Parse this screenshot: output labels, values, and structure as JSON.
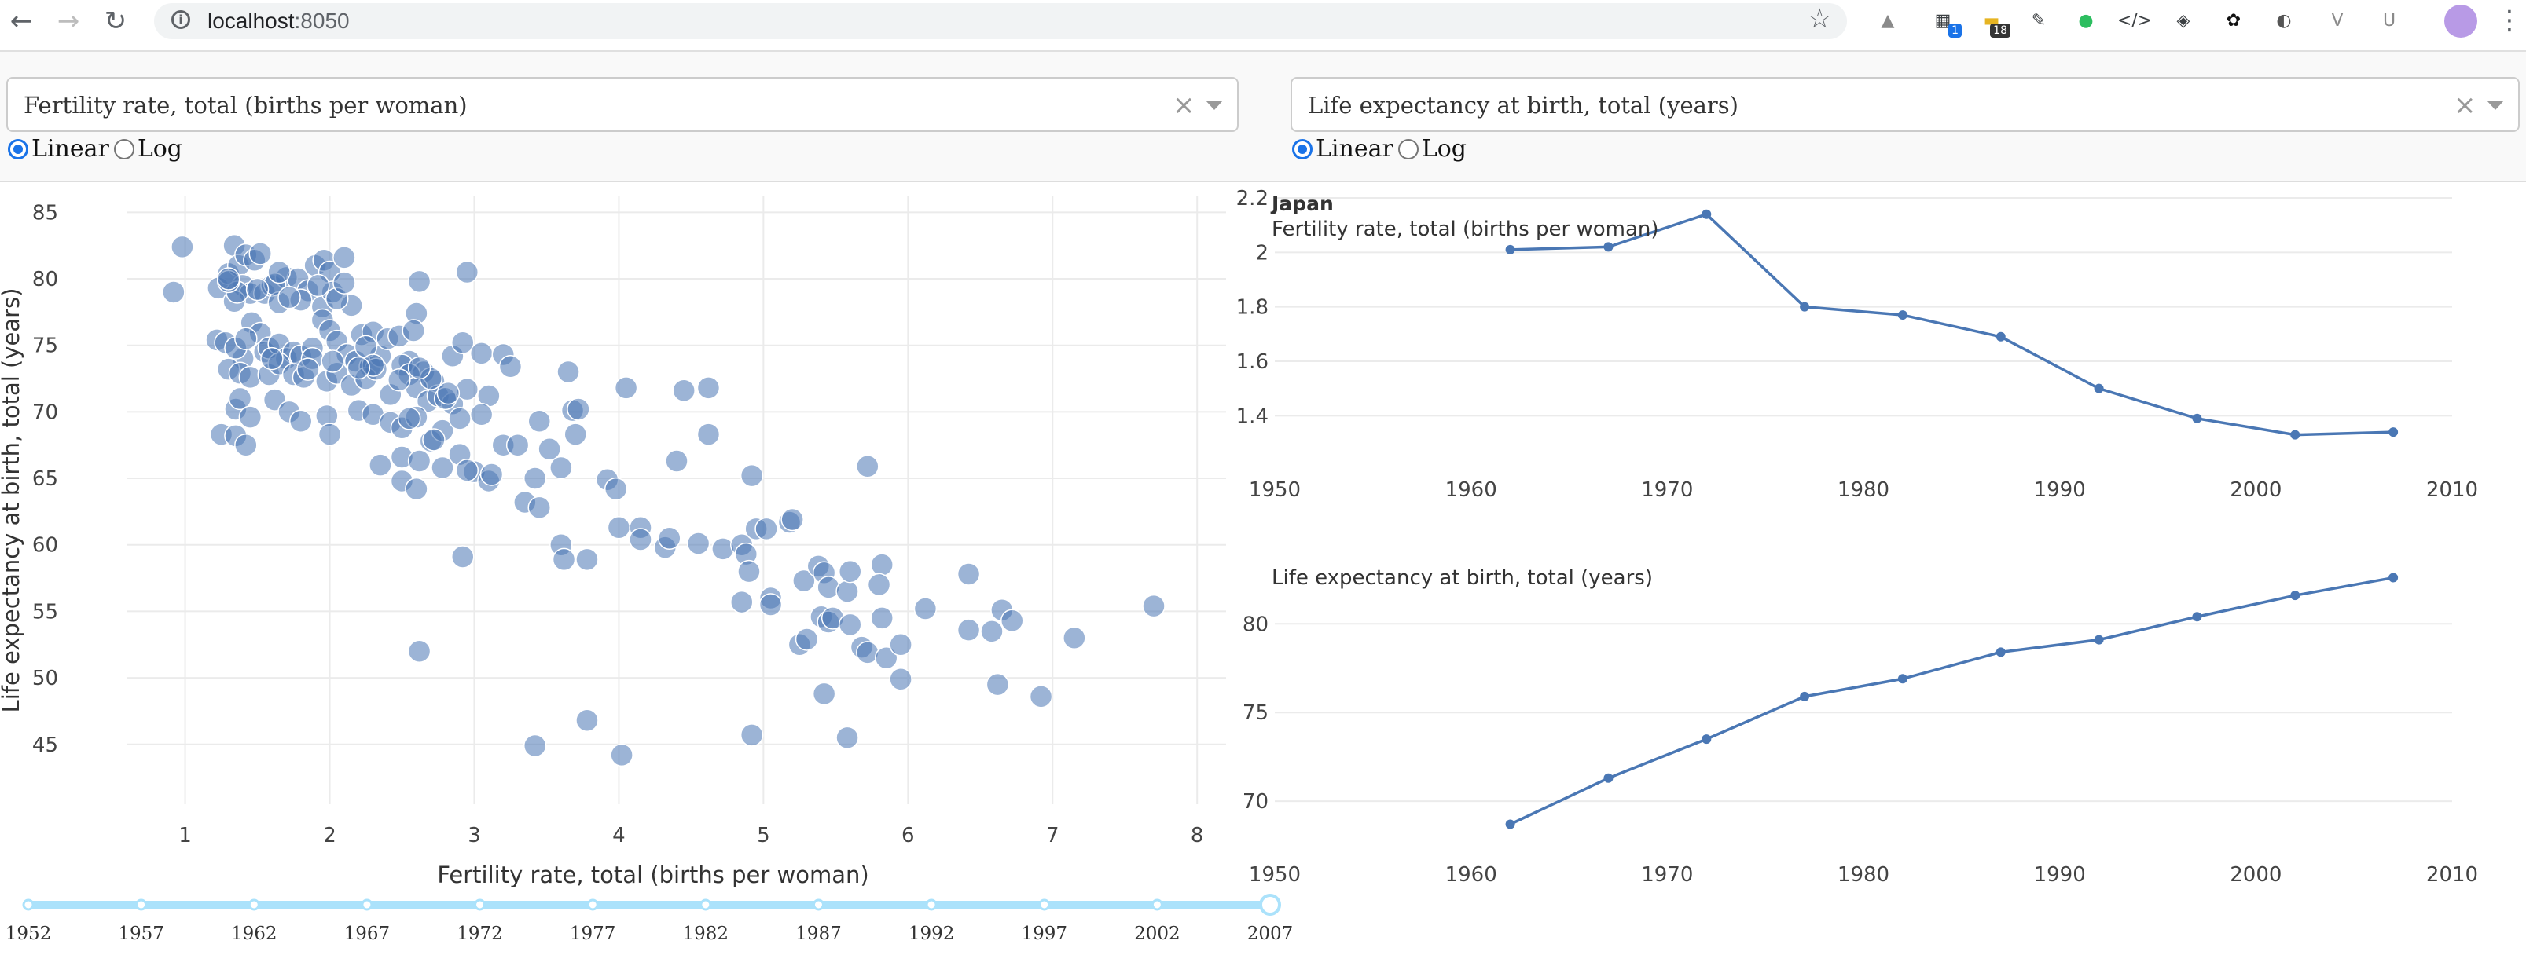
{
  "browser": {
    "url_host": "localhost",
    "url_port": ":8050",
    "extensions": [
      {
        "name": "drive-icon",
        "color": "#8a8a8a",
        "glyph": "▲",
        "badge": ""
      },
      {
        "name": "clapper-icon",
        "color": "#3c4043",
        "glyph": "▦",
        "badge": "1",
        "badge_dark": false
      },
      {
        "name": "sticky-icon",
        "color": "#e6b422",
        "glyph": "▬",
        "badge": "18",
        "badge_dark": true
      },
      {
        "name": "pen-icon",
        "color": "#3c4043",
        "glyph": "✎",
        "badge": ""
      },
      {
        "name": "evernote-icon",
        "color": "#2dbe60",
        "glyph": "●",
        "badge": ""
      },
      {
        "name": "code-icon",
        "color": "#3c4043",
        "glyph": "</>",
        "badge": ""
      },
      {
        "name": "bulb-icon",
        "color": "#3c4043",
        "glyph": "◈",
        "badge": ""
      },
      {
        "name": "github-icon",
        "color": "#111111",
        "glyph": "✿",
        "badge": ""
      },
      {
        "name": "circle-icon",
        "color": "#555555",
        "glyph": "◐",
        "badge": ""
      },
      {
        "name": "vue-icon",
        "color": "#8a8a8a",
        "glyph": "V",
        "badge": ""
      },
      {
        "name": "u-icon",
        "color": "#8a8a8a",
        "glyph": "U",
        "badge": ""
      }
    ]
  },
  "controls": {
    "xaxis_dropdown": {
      "value": "Fertility rate, total (births per woman)"
    },
    "yaxis_dropdown": {
      "value": "Life expectancy at birth, total (years)"
    },
    "xaxis_type": {
      "options": [
        "Linear",
        "Log"
      ],
      "selected": "Linear"
    },
    "yaxis_type": {
      "options": [
        "Linear",
        "Log"
      ],
      "selected": "Linear"
    }
  },
  "year_slider": {
    "marks": [
      "1952",
      "1957",
      "1962",
      "1967",
      "1972",
      "1977",
      "1982",
      "1987",
      "1992",
      "1997",
      "2002",
      "2007"
    ],
    "selected": "2007"
  },
  "chart_data": [
    {
      "type": "scatter",
      "xlabel": "Fertility rate, total (births per woman)",
      "ylabel": "Life expectancy at birth, total (years)",
      "xlim": [
        0.6,
        8.2
      ],
      "ylim": [
        40.5,
        86.2
      ],
      "xticks": [
        1,
        2,
        3,
        4,
        5,
        6,
        7,
        8
      ],
      "yticks": [
        45,
        50,
        55,
        60,
        65,
        70,
        75,
        80,
        85
      ],
      "color": "#4a77b4",
      "points": [
        [
          0.92,
          79.0
        ],
        [
          0.98,
          82.4
        ],
        [
          1.23,
          79.3
        ],
        [
          1.3,
          80.4
        ],
        [
          1.34,
          82.5
        ],
        [
          1.37,
          81.0
        ],
        [
          1.42,
          81.8
        ],
        [
          1.48,
          81.4
        ],
        [
          1.52,
          81.9
        ],
        [
          1.4,
          79.5
        ],
        [
          1.45,
          78.9
        ],
        [
          1.34,
          78.3
        ],
        [
          1.36,
          79.0
        ],
        [
          1.3,
          79.8
        ],
        [
          1.55,
          78.9
        ],
        [
          1.6,
          79.5
        ],
        [
          1.65,
          78.2
        ],
        [
          1.7,
          80.1
        ],
        [
          1.78,
          80.0
        ],
        [
          1.85,
          79.1
        ],
        [
          1.9,
          81.0
        ],
        [
          1.96,
          81.4
        ],
        [
          2.0,
          80.5
        ],
        [
          2.1,
          81.6
        ],
        [
          1.8,
          78.4
        ],
        [
          1.95,
          77.9
        ],
        [
          2.02,
          79.0
        ],
        [
          2.15,
          78.0
        ],
        [
          1.62,
          79.6
        ],
        [
          1.72,
          78.6
        ],
        [
          1.22,
          75.4
        ],
        [
          1.28,
          75.2
        ],
        [
          1.4,
          74.0
        ],
        [
          1.46,
          76.7
        ],
        [
          1.52,
          75.9
        ],
        [
          1.55,
          74.5
        ],
        [
          1.58,
          74.8
        ],
        [
          1.65,
          75.1
        ],
        [
          1.7,
          74.0
        ],
        [
          1.75,
          74.5
        ],
        [
          1.8,
          74.2
        ],
        [
          1.88,
          74.8
        ],
        [
          1.95,
          76.9
        ],
        [
          2.0,
          76.1
        ],
        [
          2.05,
          75.3
        ],
        [
          2.12,
          74.3
        ],
        [
          2.18,
          73.8
        ],
        [
          2.22,
          75.8
        ],
        [
          2.3,
          76.0
        ],
        [
          2.28,
          73.4
        ],
        [
          2.35,
          74.2
        ],
        [
          2.4,
          75.5
        ],
        [
          2.48,
          75.7
        ],
        [
          2.55,
          73.8
        ],
        [
          2.6,
          77.4
        ],
        [
          2.58,
          76.1
        ],
        [
          2.65,
          73.0
        ],
        [
          2.72,
          72.3
        ],
        [
          2.85,
          74.2
        ],
        [
          2.92,
          75.2
        ],
        [
          3.05,
          74.4
        ],
        [
          3.2,
          74.3
        ],
        [
          1.3,
          73.2
        ],
        [
          1.38,
          72.9
        ],
        [
          1.45,
          72.6
        ],
        [
          1.58,
          72.8
        ],
        [
          1.65,
          73.6
        ],
        [
          1.75,
          72.8
        ],
        [
          1.82,
          72.6
        ],
        [
          1.88,
          74.0
        ],
        [
          1.98,
          72.3
        ],
        [
          2.05,
          72.9
        ],
        [
          2.15,
          72.0
        ],
        [
          2.25,
          72.5
        ],
        [
          2.32,
          73.2
        ],
        [
          2.42,
          71.3
        ],
        [
          2.5,
          73.5
        ],
        [
          2.55,
          72.8
        ],
        [
          2.6,
          71.8
        ],
        [
          2.68,
          70.8
        ],
        [
          2.75,
          71.2
        ],
        [
          2.85,
          70.6
        ],
        [
          2.95,
          71.7
        ],
        [
          3.1,
          71.2
        ],
        [
          3.25,
          73.4
        ],
        [
          1.35,
          70.2
        ],
        [
          1.38,
          71.0
        ],
        [
          1.45,
          69.6
        ],
        [
          1.62,
          70.9
        ],
        [
          1.72,
          70.0
        ],
        [
          1.8,
          69.3
        ],
        [
          1.98,
          69.7
        ],
        [
          2.2,
          70.1
        ],
        [
          2.3,
          69.8
        ],
        [
          2.42,
          69.2
        ],
        [
          2.5,
          68.8
        ],
        [
          2.6,
          69.6
        ],
        [
          2.7,
          67.8
        ],
        [
          2.78,
          68.6
        ],
        [
          2.9,
          69.5
        ],
        [
          3.05,
          69.8
        ],
        [
          3.2,
          67.5
        ],
        [
          1.25,
          68.3
        ],
        [
          1.35,
          68.2
        ],
        [
          1.42,
          67.5
        ],
        [
          2.0,
          68.3
        ],
        [
          2.35,
          66.0
        ],
        [
          2.5,
          66.6
        ],
        [
          2.62,
          66.3
        ],
        [
          2.78,
          65.8
        ],
        [
          2.9,
          66.8
        ],
        [
          3.0,
          65.5
        ],
        [
          3.1,
          64.8
        ],
        [
          3.12,
          65.3
        ],
        [
          2.5,
          64.8
        ],
        [
          2.6,
          64.2
        ],
        [
          3.35,
          63.2
        ],
        [
          3.45,
          62.8
        ],
        [
          3.42,
          65.0
        ],
        [
          3.3,
          67.5
        ],
        [
          3.45,
          69.3
        ],
        [
          3.52,
          67.2
        ],
        [
          3.6,
          65.8
        ],
        [
          3.65,
          73.0
        ],
        [
          3.68,
          70.1
        ],
        [
          3.7,
          68.3
        ],
        [
          3.72,
          70.2
        ],
        [
          4.05,
          71.8
        ],
        [
          4.45,
          71.6
        ],
        [
          4.62,
          71.8
        ],
        [
          4.62,
          68.3
        ],
        [
          4.4,
          66.3
        ],
        [
          3.92,
          64.9
        ],
        [
          3.98,
          64.2
        ],
        [
          4.0,
          61.3
        ],
        [
          4.15,
          61.3
        ],
        [
          4.15,
          60.4
        ],
        [
          4.32,
          59.8
        ],
        [
          4.35,
          60.5
        ],
        [
          4.55,
          60.1
        ],
        [
          4.72,
          59.7
        ],
        [
          4.85,
          60.0
        ],
        [
          4.88,
          59.3
        ],
        [
          4.9,
          58.0
        ],
        [
          4.95,
          61.2
        ],
        [
          5.02,
          61.2
        ],
        [
          4.92,
          65.2
        ],
        [
          5.18,
          61.7
        ],
        [
          5.2,
          61.9
        ],
        [
          3.6,
          60.0
        ],
        [
          3.62,
          58.9
        ],
        [
          3.78,
          58.9
        ],
        [
          2.92,
          59.1
        ],
        [
          5.05,
          56.0
        ],
        [
          5.05,
          55.5
        ],
        [
          4.85,
          55.7
        ],
        [
          5.28,
          57.3
        ],
        [
          5.38,
          58.4
        ],
        [
          5.42,
          57.9
        ],
        [
          5.45,
          56.8
        ],
        [
          5.58,
          56.5
        ],
        [
          5.6,
          58.0
        ],
        [
          5.82,
          58.5
        ],
        [
          5.8,
          57.0
        ],
        [
          5.72,
          65.9
        ],
        [
          5.4,
          54.6
        ],
        [
          5.45,
          54.2
        ],
        [
          5.48,
          54.5
        ],
        [
          5.6,
          54.0
        ],
        [
          5.82,
          54.5
        ],
        [
          5.68,
          52.3
        ],
        [
          5.72,
          51.9
        ],
        [
          5.85,
          51.5
        ],
        [
          5.95,
          52.5
        ],
        [
          5.95,
          49.9
        ],
        [
          5.42,
          48.8
        ],
        [
          6.12,
          55.2
        ],
        [
          6.42,
          57.8
        ],
        [
          6.42,
          53.6
        ],
        [
          6.58,
          53.5
        ],
        [
          6.65,
          55.1
        ],
        [
          6.72,
          54.3
        ],
        [
          6.62,
          49.5
        ],
        [
          6.92,
          48.6
        ],
        [
          7.15,
          53.0
        ],
        [
          7.7,
          55.4
        ],
        [
          5.25,
          52.5
        ],
        [
          5.3,
          52.9
        ],
        [
          2.62,
          52.0
        ],
        [
          3.42,
          44.9
        ],
        [
          3.78,
          46.8
        ],
        [
          4.02,
          44.2
        ],
        [
          4.92,
          45.7
        ],
        [
          5.58,
          45.5
        ],
        [
          1.3,
          80.0
        ],
        [
          1.5,
          79.2
        ],
        [
          1.65,
          80.5
        ],
        [
          1.92,
          79.5
        ],
        [
          2.05,
          78.5
        ],
        [
          2.1,
          79.7
        ],
        [
          1.35,
          74.8
        ],
        [
          2.25,
          74.9
        ],
        [
          2.48,
          72.4
        ],
        [
          1.6,
          74.0
        ],
        [
          1.85,
          73.2
        ],
        [
          2.3,
          73.5
        ],
        [
          2.7,
          72.5
        ],
        [
          2.8,
          71.0
        ],
        [
          1.42,
          75.5
        ],
        [
          2.62,
          73.3
        ],
        [
          2.02,
          73.8
        ],
        [
          2.2,
          73.3
        ],
        [
          2.62,
          79.8
        ],
        [
          2.95,
          80.5
        ],
        [
          2.55,
          69.5
        ],
        [
          2.82,
          71.4
        ],
        [
          2.72,
          67.9
        ],
        [
          2.95,
          65.6
        ]
      ]
    },
    {
      "type": "line",
      "title": "Japan",
      "subtitle": "Fertility rate, total (births per woman)",
      "xlim": [
        1950,
        2010
      ],
      "ylim": [
        1.3,
        2.2
      ],
      "xticks": [
        1950,
        1960,
        1970,
        1980,
        1990,
        2000,
        2010
      ],
      "yticks": [
        1.4,
        1.6,
        1.8,
        2,
        2.2
      ],
      "ytick_labels": [
        "1.4",
        "1.6",
        "1.8",
        "2",
        "2.2"
      ],
      "color": "#4a77b4",
      "x": [
        1962,
        1967,
        1972,
        1977,
        1982,
        1987,
        1992,
        1997,
        2002,
        2007
      ],
      "y": [
        2.01,
        2.02,
        2.14,
        1.8,
        1.77,
        1.69,
        1.5,
        1.39,
        1.33,
        1.34
      ]
    },
    {
      "type": "line",
      "subtitle": "Life expectancy at birth, total (years)",
      "xlim": [
        1950,
        2010
      ],
      "ylim": [
        68.5,
        83.2
      ],
      "xticks": [
        1950,
        1960,
        1970,
        1980,
        1990,
        2000,
        2010
      ],
      "yticks": [
        70,
        75,
        80
      ],
      "ytick_labels": [
        "70",
        "75",
        "80"
      ],
      "color": "#4a77b4",
      "x": [
        1962,
        1967,
        1972,
        1977,
        1982,
        1987,
        1992,
        1997,
        2002,
        2007
      ],
      "y": [
        68.7,
        71.3,
        73.5,
        75.9,
        76.9,
        78.4,
        79.1,
        80.4,
        81.6,
        82.6
      ]
    }
  ]
}
